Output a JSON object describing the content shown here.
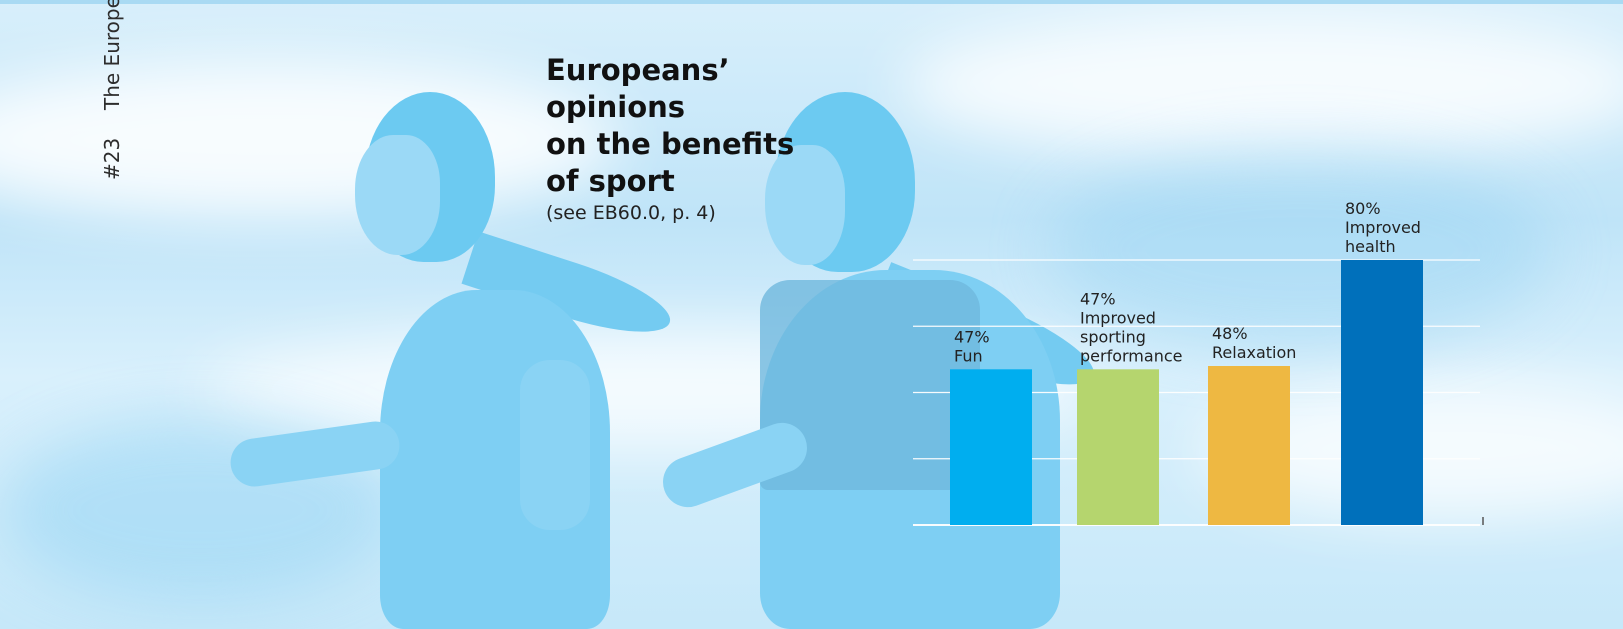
{
  "folio": {
    "page_number": "#23",
    "running_title": "The Europe"
  },
  "heading": {
    "title_lines": [
      "Europeans’ opinions",
      "on the benefits",
      "of sport"
    ],
    "reference": "(see EB60.0, p. 4)"
  },
  "chart_data": {
    "type": "bar",
    "title": "Europeans’ opinions on the benefits of sport",
    "subtitle": "(see EB60.0, p. 4)",
    "categories": [
      "Fun",
      "Improved sporting performance",
      "Relaxation",
      "Improved health"
    ],
    "category_label_lines": [
      [
        "Fun"
      ],
      [
        "Improved",
        "sporting",
        "performance"
      ],
      [
        "Relaxation"
      ],
      [
        "Improved",
        "health"
      ]
    ],
    "values": [
      47,
      47,
      48,
      80
    ],
    "value_labels": [
      "47%",
      "47%",
      "48%",
      "80%"
    ],
    "unit": "%",
    "colors": [
      "#00aeef",
      "#b5d56e",
      "#eeb842",
      "#0070bb"
    ],
    "ylim": [
      0,
      80
    ],
    "gridlines": [
      0,
      20,
      40,
      60,
      80
    ],
    "grid": true,
    "legend": "none",
    "xlabel": "",
    "ylabel": ""
  }
}
